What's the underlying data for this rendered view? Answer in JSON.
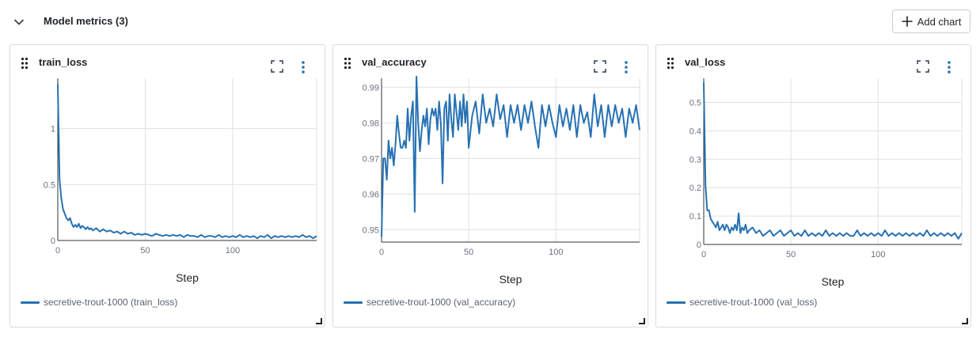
{
  "section": {
    "title": "Model metrics (3)",
    "add_chart_label": "Add chart"
  },
  "colors": {
    "series": "#2771b2",
    "grid": "#dde1e6",
    "axis": "#333333"
  },
  "charts": [
    {
      "title": "train_loss",
      "legend": "secretive-trout-1000 (train_loss)",
      "chart_data": {
        "type": "line",
        "title": "train_loss",
        "xlabel": "Step",
        "ylabel": "",
        "xlim": [
          0,
          148
        ],
        "ylim": [
          0,
          1.45
        ],
        "xticks": [
          0,
          50,
          100
        ],
        "yticks": [
          {
            "v": 0,
            "label": "0"
          },
          {
            "v": 0.5,
            "label": "0.5"
          },
          {
            "v": 1,
            "label": "1"
          }
        ],
        "series": [
          {
            "x": [
              0,
              1,
              2,
              3,
              4,
              5,
              6,
              7,
              8,
              9,
              10,
              11,
              12,
              13,
              14,
              15,
              16,
              17,
              18,
              19,
              20,
              22,
              24,
              26,
              28,
              30,
              32,
              34,
              36,
              38,
              40,
              42,
              44,
              46,
              48,
              50,
              52,
              54,
              56,
              58,
              60,
              62,
              64,
              66,
              68,
              70,
              72,
              74,
              76,
              78,
              80,
              82,
              84,
              86,
              88,
              90,
              92,
              94,
              96,
              98,
              100,
              102,
              104,
              106,
              108,
              110,
              112,
              114,
              116,
              118,
              120,
              122,
              124,
              126,
              128,
              130,
              132,
              134,
              136,
              138,
              140,
              142,
              144,
              146,
              148
            ],
            "y": [
              1.4,
              0.55,
              0.38,
              0.28,
              0.24,
              0.2,
              0.18,
              0.2,
              0.15,
              0.12,
              0.14,
              0.12,
              0.15,
              0.11,
              0.13,
              0.12,
              0.1,
              0.12,
              0.1,
              0.11,
              0.09,
              0.11,
              0.08,
              0.1,
              0.08,
              0.09,
              0.07,
              0.08,
              0.06,
              0.08,
              0.06,
              0.07,
              0.05,
              0.06,
              0.05,
              0.06,
              0.05,
              0.04,
              0.06,
              0.05,
              0.04,
              0.05,
              0.04,
              0.05,
              0.04,
              0.05,
              0.03,
              0.05,
              0.04,
              0.04,
              0.03,
              0.05,
              0.03,
              0.04,
              0.04,
              0.03,
              0.05,
              0.03,
              0.04,
              0.03,
              0.04,
              0.03,
              0.05,
              0.03,
              0.04,
              0.03,
              0.04,
              0.02,
              0.04,
              0.03,
              0.05,
              0.02,
              0.04,
              0.03,
              0.04,
              0.03,
              0.04,
              0.03,
              0.04,
              0.03,
              0.05,
              0.03,
              0.04,
              0.02,
              0.04
            ]
          }
        ]
      }
    },
    {
      "title": "val_accuracy",
      "legend": "secretive-trout-1000 (val_accuracy)",
      "chart_data": {
        "type": "line",
        "title": "val_accuracy",
        "xlabel": "Step",
        "ylabel": "",
        "xlim": [
          0,
          148
        ],
        "ylim": [
          0.9465,
          0.9925
        ],
        "xticks": [
          0,
          50,
          100
        ],
        "yticks": [
          {
            "v": 0.95,
            "label": "0.95"
          },
          {
            "v": 0.96,
            "label": "0.96"
          },
          {
            "v": 0.97,
            "label": "0.97"
          },
          {
            "v": 0.98,
            "label": "0.98"
          },
          {
            "v": 0.99,
            "label": "0.99"
          }
        ],
        "series": [
          {
            "x": [
              0,
              1,
              2,
              3,
              4,
              5,
              6,
              7,
              8,
              9,
              10,
              11,
              12,
              13,
              14,
              15,
              16,
              17,
              18,
              19,
              20,
              21,
              22,
              23,
              24,
              25,
              26,
              27,
              28,
              29,
              30,
              31,
              32,
              33,
              34,
              35,
              36,
              37,
              38,
              39,
              40,
              41,
              42,
              43,
              44,
              45,
              46,
              47,
              48,
              49,
              50,
              52,
              54,
              56,
              58,
              60,
              62,
              64,
              66,
              68,
              70,
              72,
              74,
              76,
              78,
              80,
              82,
              84,
              86,
              88,
              90,
              92,
              94,
              96,
              98,
              100,
              102,
              104,
              106,
              108,
              110,
              112,
              114,
              116,
              118,
              120,
              122,
              124,
              126,
              128,
              130,
              132,
              134,
              136,
              138,
              140,
              142,
              144,
              146,
              148
            ],
            "y": [
              0.948,
              0.97,
              0.97,
              0.964,
              0.975,
              0.97,
              0.973,
              0.968,
              0.974,
              0.982,
              0.977,
              0.973,
              0.973,
              0.975,
              0.973,
              0.984,
              0.975,
              0.982,
              0.986,
              0.955,
              0.993,
              0.98,
              0.972,
              0.978,
              0.982,
              0.979,
              0.984,
              0.974,
              0.981,
              0.984,
              0.982,
              0.984,
              0.978,
              0.986,
              0.98,
              0.963,
              0.984,
              0.986,
              0.975,
              0.988,
              0.981,
              0.976,
              0.988,
              0.983,
              0.978,
              0.986,
              0.979,
              0.988,
              0.98,
              0.986,
              0.973,
              0.982,
              0.986,
              0.977,
              0.988,
              0.98,
              0.984,
              0.979,
              0.988,
              0.981,
              0.985,
              0.976,
              0.985,
              0.98,
              0.985,
              0.978,
              0.985,
              0.98,
              0.986,
              0.979,
              0.973,
              0.985,
              0.979,
              0.985,
              0.98,
              0.976,
              0.985,
              0.979,
              0.984,
              0.978,
              0.985,
              0.976,
              0.985,
              0.98,
              0.983,
              0.976,
              0.988,
              0.979,
              0.985,
              0.976,
              0.985,
              0.979,
              0.985,
              0.98,
              0.984,
              0.976,
              0.984,
              0.98,
              0.985,
              0.978
            ]
          }
        ]
      }
    },
    {
      "title": "val_loss",
      "legend": "secretive-trout-1000 (val_loss)",
      "chart_data": {
        "type": "line",
        "title": "val_loss",
        "xlabel": "Step",
        "ylabel": "",
        "xlim": [
          0,
          148
        ],
        "ylim": [
          0,
          0.585
        ],
        "xticks": [
          0,
          50,
          100
        ],
        "yticks": [
          {
            "v": 0,
            "label": "0"
          },
          {
            "v": 0.1,
            "label": "0.1"
          },
          {
            "v": 0.2,
            "label": "0.2"
          },
          {
            "v": 0.3,
            "label": "0.3"
          },
          {
            "v": 0.4,
            "label": "0.4"
          },
          {
            "v": 0.5,
            "label": "0.5"
          }
        ],
        "series": [
          {
            "x": [
              0,
              1,
              2,
              3,
              4,
              5,
              6,
              7,
              8,
              9,
              10,
              11,
              12,
              13,
              14,
              15,
              16,
              17,
              18,
              19,
              20,
              21,
              22,
              23,
              24,
              25,
              26,
              28,
              30,
              32,
              34,
              36,
              38,
              40,
              42,
              44,
              46,
              48,
              50,
              52,
              54,
              56,
              58,
              60,
              62,
              64,
              66,
              68,
              70,
              72,
              74,
              76,
              78,
              80,
              82,
              84,
              86,
              88,
              90,
              92,
              94,
              96,
              98,
              100,
              102,
              104,
              106,
              108,
              110,
              112,
              114,
              116,
              118,
              120,
              122,
              124,
              126,
              128,
              130,
              132,
              134,
              136,
              138,
              140,
              142,
              144,
              146,
              148
            ],
            "y": [
              0.57,
              0.21,
              0.12,
              0.12,
              0.09,
              0.08,
              0.07,
              0.06,
              0.08,
              0.05,
              0.06,
              0.07,
              0.05,
              0.07,
              0.06,
              0.04,
              0.06,
              0.05,
              0.07,
              0.05,
              0.11,
              0.04,
              0.06,
              0.05,
              0.07,
              0.04,
              0.05,
              0.06,
              0.04,
              0.05,
              0.03,
              0.04,
              0.05,
              0.03,
              0.04,
              0.05,
              0.03,
              0.04,
              0.05,
              0.03,
              0.04,
              0.03,
              0.05,
              0.03,
              0.04,
              0.03,
              0.04,
              0.03,
              0.05,
              0.03,
              0.04,
              0.03,
              0.04,
              0.03,
              0.04,
              0.03,
              0.03,
              0.05,
              0.03,
              0.04,
              0.03,
              0.04,
              0.03,
              0.04,
              0.03,
              0.05,
              0.03,
              0.04,
              0.03,
              0.04,
              0.03,
              0.04,
              0.03,
              0.04,
              0.03,
              0.04,
              0.03,
              0.05,
              0.03,
              0.04,
              0.03,
              0.04,
              0.03,
              0.04,
              0.03,
              0.04,
              0.02,
              0.04
            ]
          }
        ]
      }
    }
  ]
}
